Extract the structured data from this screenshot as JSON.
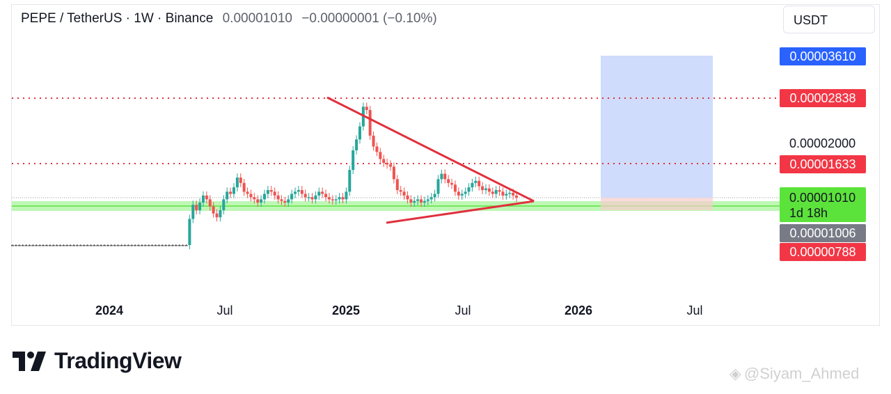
{
  "header": {
    "symbol": "PEPE / TetherUS · 1W · Binance",
    "price": "0.00001010",
    "change": "−0.00000001 (−0.10%)"
  },
  "currency_button": "USDT",
  "price_labels": {
    "target": "0.00003610",
    "resistance_top": "0.00002838",
    "scale_tick": "0.00002000",
    "resistance_mid": "0.00001633",
    "current_price": "0.00001010",
    "countdown": "1d 18h",
    "prev_close": "0.00001006",
    "stop": "0.00000788"
  },
  "colors": {
    "target": "#2962ff",
    "resistance": "#f23645",
    "current": "#5ce33b",
    "prev_close": "#787b86",
    "support_band": "#8af07a",
    "target_zone": "#cfdcfb"
  },
  "logo": "TradingView",
  "watermark": "@Siyam_Ahmed",
  "chart_data": {
    "type": "candlestick",
    "symbol": "PEPE / TetherUS",
    "interval": "1W",
    "exchange": "Binance",
    "x_ticks": [
      "2024",
      "Jul",
      "2025",
      "Jul",
      "2026",
      "Jul"
    ],
    "y_ticks": [
      "0.00002000"
    ],
    "closes_approx": [
      9e-07,
      9e-07,
      9e-07,
      9e-07,
      9e-07,
      9e-07,
      9e-07,
      9e-07,
      9e-07,
      9e-07,
      9e-07,
      9e-07,
      9e-07,
      9e-07,
      9e-07,
      9e-07,
      9e-07,
      9e-07,
      9e-07,
      9e-07,
      9e-07,
      9e-07,
      9e-07,
      9e-07,
      9e-07,
      9e-07,
      9e-07,
      9e-07,
      9e-07,
      9e-07,
      9e-07,
      9e-07,
      9e-07,
      9e-07,
      9e-07,
      9e-07,
      9e-07,
      9e-07,
      9e-07,
      9e-07,
      9e-07,
      9e-07,
      9e-07,
      9e-07,
      9e-07,
      9e-07,
      9e-07,
      9e-07,
      9e-07,
      1e-06,
      1.2e-06,
      1.6e-06,
      6.2e-06,
      8.8e-06,
      7.8e-06,
      9.2e-06,
      1.05e-05,
      9.8e-06,
      8.5e-06,
      7.2e-06,
      6.5e-06,
      7.8e-06,
      9.8e-06,
      1.12e-05,
      1.08e-05,
      1.2e-05,
      1.38e-05,
      1.28e-05,
      1.12e-05,
      1.08e-05,
      1.02e-05,
      9.8e-06,
      9.2e-06,
      9.8e-06,
      1.08e-05,
      1.15e-05,
      1.12e-05,
      1.05e-05,
      9.8e-06,
      9.5e-06,
      9.2e-06,
      9.8e-06,
      1.08e-05,
      1.12e-05,
      1.15e-05,
      1.08e-05,
      1.02e-05,
      1.02e-05,
      9.8e-06,
      1.05e-05,
      1.12e-05,
      1.08e-05,
      1.02e-05,
      9.8e-06,
      9.6e-06,
      9.8e-06,
      1.02e-05,
      9.8e-06,
      1.12e-05,
      1.52e-05,
      1.88e-05,
      2.08e-05,
      2.32e-05,
      2.68e-05,
      2.62e-05,
      2.15e-05,
      1.95e-05,
      1.85e-05,
      1.72e-05,
      1.65e-05,
      1.62e-05,
      1.58e-05,
      1.35e-05,
      1.15e-05,
      1.12e-05,
      1.05e-05,
      9.8e-06,
      9.2e-06,
      9.5e-06,
      9.8e-06,
      9.2e-06,
      9.5e-06,
      9.8e-06,
      1.02e-05,
      1.08e-05,
      1.35e-05,
      1.45e-05,
      1.35e-05,
      1.28e-05,
      1.25e-05,
      1.12e-05,
      1.05e-05,
      1.08e-05,
      1.12e-05,
      1.2e-05,
      1.28e-05,
      1.32e-05,
      1.22e-05,
      1.15e-05,
      1.18e-05,
      1.12e-05,
      1.08e-05,
      1.15e-05,
      1.12e-05,
      1.05e-05,
      1.08e-05,
      1.1e-05,
      1.05e-05,
      1.01e-05
    ],
    "levels": {
      "target": 3.61e-05,
      "resistance_top": 2.838e-05,
      "resistance_mid": 1.633e-05,
      "current": 1.01e-05,
      "prev_close": 1.006e-05,
      "stop": 7.88e-06
    },
    "annotations": [
      "symmetrical triangle",
      "support band near current price",
      "long position target zone"
    ]
  }
}
